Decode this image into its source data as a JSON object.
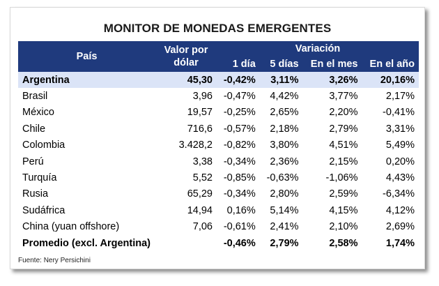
{
  "title": "MONITOR DE MONEDAS EMERGENTES",
  "header": {
    "pais": "País",
    "valor_line1": "Valor por",
    "valor_line2": "dólar",
    "variacion": "Variación",
    "cols": [
      "1 día",
      "5 días",
      "En el mes",
      "En el año"
    ]
  },
  "rows": [
    {
      "country": "Argentina",
      "valor": "45,30",
      "d1": "-0,42%",
      "d5": "3,11%",
      "mes": "3,26%",
      "anio": "20,16%"
    },
    {
      "country": "Brasil",
      "valor": "3,96",
      "d1": "-0,47%",
      "d5": "4,42%",
      "mes": "3,77%",
      "anio": "2,17%"
    },
    {
      "country": "México",
      "valor": "19,57",
      "d1": "-0,25%",
      "d5": "2,65%",
      "mes": "2,20%",
      "anio": "-0,41%"
    },
    {
      "country": "Chile",
      "valor": "716,6",
      "d1": "-0,57%",
      "d5": "2,18%",
      "mes": "2,79%",
      "anio": "3,31%"
    },
    {
      "country": "Colombia",
      "valor": "3.428,2",
      "d1": "-0,82%",
      "d5": "3,80%",
      "mes": "4,51%",
      "anio": "5,49%"
    },
    {
      "country": "Perú",
      "valor": "3,38",
      "d1": "-0,34%",
      "d5": "2,36%",
      "mes": "2,15%",
      "anio": "0,20%"
    },
    {
      "country": "Turquía",
      "valor": "5,52",
      "d1": "-0,85%",
      "d5": "-0,63%",
      "mes": "-1,06%",
      "anio": "4,43%"
    },
    {
      "country": "Rusia",
      "valor": "65,29",
      "d1": "-0,34%",
      "d5": "2,80%",
      "mes": "2,59%",
      "anio": "-6,34%"
    },
    {
      "country": "Sudáfrica",
      "valor": "14,94",
      "d1": "0,16%",
      "d5": "5,14%",
      "mes": "4,15%",
      "anio": "4,12%"
    },
    {
      "country": "China (yuan offshore)",
      "valor": "7,06",
      "d1": "-0,61%",
      "d5": "2,41%",
      "mes": "2,10%",
      "anio": "2,69%"
    }
  ],
  "promedio": {
    "label": "Promedio (excl. Argentina)",
    "d1": "-0,46%",
    "d5": "2,79%",
    "mes": "2,58%",
    "anio": "1,74%"
  },
  "source": "Fuente: Nery Persichini",
  "colors": {
    "header_bg": "#1f3a7d",
    "highlight_bg": "#dbe4f7"
  }
}
